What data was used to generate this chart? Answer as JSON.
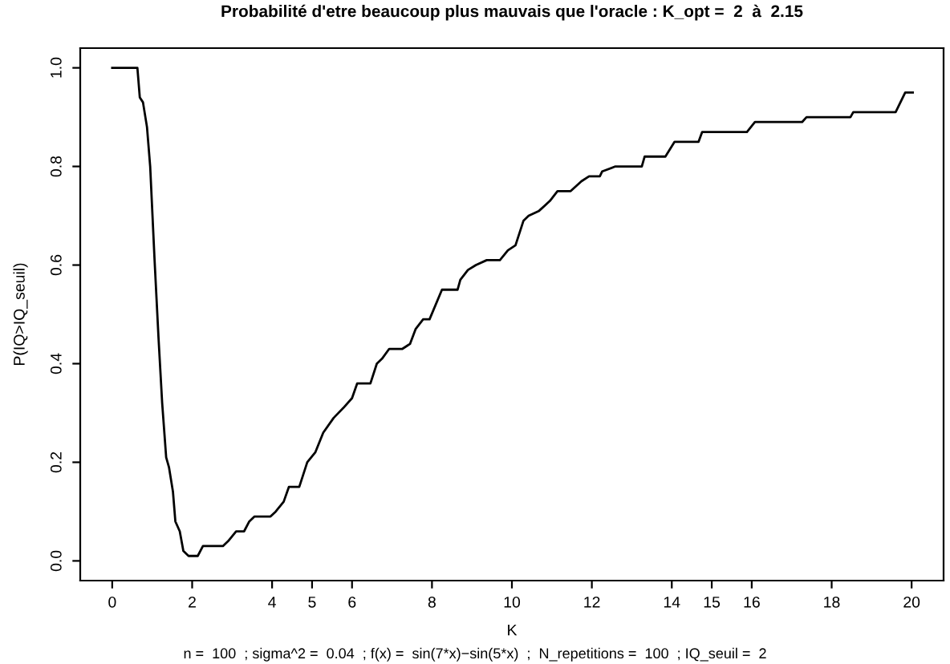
{
  "chart_data": {
    "type": "line",
    "title": "Probabilité d'etre beaucoup plus mauvais que l'oracle : K_opt =  2  à  2.15",
    "xlabel": "K",
    "ylabel": "P(IQ>IQ_seuil)",
    "annotations": [
      "n =  100  ; sigma^2 =  0.04  ; f(x) =  sin(7*x)−sin(5*x)  ;  N_repetitions =  100  ; IQ_seuil =  2"
    ],
    "series": [
      {
        "color": "#000000",
        "x": [
          0,
          0.63,
          0.69,
          0.77,
          0.87,
          0.95,
          1.06,
          1.16,
          1.25,
          1.35,
          1.42,
          1.52,
          1.58,
          1.69,
          1.78,
          1.91,
          2.0,
          2.14,
          2.27,
          2.77,
          2.9,
          3.1,
          3.3,
          3.43,
          3.56,
          3.96,
          4.09,
          4.29,
          4.42,
          4.68,
          4.88,
          5.08,
          5.28,
          5.54,
          5.78,
          6.0,
          6.13,
          6.46,
          6.62,
          6.75,
          6.93,
          7.26,
          7.45,
          7.59,
          7.78,
          7.94,
          8.25,
          8.64,
          8.71,
          8.9,
          9.1,
          9.37,
          9.7,
          9.9,
          10.09,
          10.29,
          10.42,
          10.68,
          10.95,
          11.14,
          11.47,
          11.74,
          11.93,
          12.2,
          12.26,
          12.59,
          13.25,
          13.32,
          13.84,
          14.07,
          14.67,
          14.76,
          15.88,
          16.08,
          17.26,
          17.37,
          18.47,
          18.54,
          19.6,
          19.84,
          20.03
        ],
        "values": [
          1.0,
          1.0,
          0.94,
          0.93,
          0.88,
          0.8,
          0.61,
          0.45,
          0.32,
          0.21,
          0.19,
          0.14,
          0.08,
          0.06,
          0.02,
          0.01,
          0.01,
          0.01,
          0.03,
          0.03,
          0.04,
          0.06,
          0.06,
          0.08,
          0.09,
          0.09,
          0.1,
          0.12,
          0.15,
          0.15,
          0.2,
          0.22,
          0.26,
          0.29,
          0.31,
          0.33,
          0.36,
          0.36,
          0.4,
          0.41,
          0.43,
          0.43,
          0.44,
          0.47,
          0.49,
          0.49,
          0.55,
          0.55,
          0.57,
          0.59,
          0.6,
          0.61,
          0.61,
          0.63,
          0.64,
          0.69,
          0.7,
          0.71,
          0.73,
          0.75,
          0.75,
          0.77,
          0.78,
          0.78,
          0.79,
          0.8,
          0.8,
          0.82,
          0.82,
          0.85,
          0.85,
          0.87,
          0.87,
          0.89,
          0.89,
          0.9,
          0.9,
          0.91,
          0.91,
          0.95,
          0.95
        ]
      }
    ],
    "xlim": [
      -0.8,
      20.8
    ],
    "ylim": [
      -0.04,
      1.04
    ],
    "xticks": [
      0,
      2,
      4,
      5,
      6,
      8,
      10,
      12,
      14,
      15,
      16,
      18,
      20
    ],
    "yticks": [
      {
        "value": 0,
        "label": "0.0"
      },
      {
        "value": 0.2,
        "label": "0.2"
      },
      {
        "value": 0.4,
        "label": "0.4"
      },
      {
        "value": 0.6,
        "label": "0.6"
      },
      {
        "value": 0.8,
        "label": "0.8"
      },
      {
        "value": 1,
        "label": "1.0"
      }
    ],
    "grid": false,
    "legend": false
  }
}
